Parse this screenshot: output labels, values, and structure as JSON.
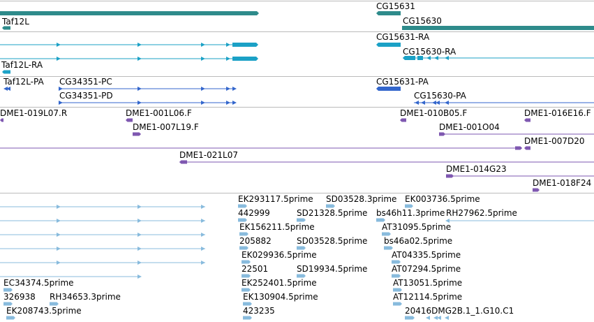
{
  "colors": {
    "gene": "#2e8b8b",
    "mrna": "#1ba1c6",
    "cds": "#3366cc",
    "clone": "#7e57b0",
    "est": "#88bbdd",
    "separator": "#bbbbbb"
  },
  "tracks": {
    "genes": {
      "labels": [
        "Taf12L",
        "CG15631",
        "CG15630"
      ]
    },
    "mrna": {
      "labels": [
        "Taf12L-RA",
        "CG15631-RA",
        "CG15630-RA"
      ]
    },
    "cds": {
      "labels": [
        "Taf12L-PA",
        "CG34351-PC",
        "CG34351-PD",
        "CG15631-PA",
        "CG15630-PA"
      ]
    },
    "clones": {
      "labels": [
        "DME1-019L07.R",
        "DME1-001L06.F",
        "DME1-010B05.F",
        "DME1-016E16.F",
        "DME1-007L19.F",
        "DME1-001O04",
        "DME1-007D20",
        "DME1-021L07",
        "DME1-014G23",
        "DME1-018F24"
      ]
    },
    "ests": {
      "labels": [
        "EK293117.5prime",
        "SD03528.3prime",
        "EK003736.5prime",
        "442999",
        "SD21328.5prime",
        "bs46h11.3prime",
        "RH27962.5prime",
        "EK156211.5prime",
        "AT31095.5prime",
        "205882",
        "SD03528.5prime",
        "bs46a02.5prime",
        "EK029936.5prime",
        "AT04335.5prime",
        "22501",
        "SD19934.5prime",
        "AT07294.5prime",
        "EC34374.5prime",
        "EK252401.5prime",
        "AT13051.5prime",
        "326938",
        "RH34653.3prime",
        "EK130904.5prime",
        "AT12114.5prime",
        "EK208743.5prime",
        "423235",
        "20416DMG2B.1_1.G10.C1"
      ]
    }
  }
}
